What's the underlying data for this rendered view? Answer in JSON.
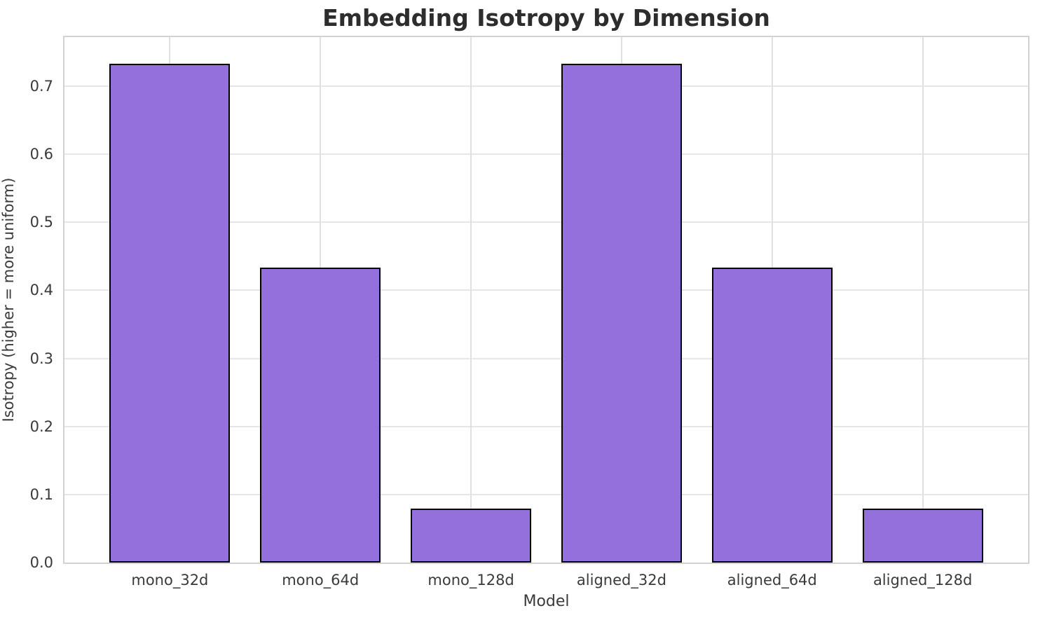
{
  "chart_data": {
    "type": "bar",
    "title": "Embedding Isotropy by Dimension",
    "xlabel": "Model",
    "ylabel": "Isotropy (higher = more uniform)",
    "categories": [
      "mono_32d",
      "mono_64d",
      "mono_128d",
      "aligned_32d",
      "aligned_64d",
      "aligned_128d"
    ],
    "values": [
      0.733,
      0.433,
      0.079,
      0.733,
      0.433,
      0.079
    ],
    "ylim": [
      0,
      0.772
    ],
    "yticks": [
      0.0,
      0.1,
      0.2,
      0.3,
      0.4,
      0.5,
      0.6,
      0.7
    ],
    "ytick_labels": [
      "0.0",
      "0.1",
      "0.2",
      "0.3",
      "0.4",
      "0.5",
      "0.6",
      "0.7"
    ],
    "xlim": [
      -0.7,
      5.7
    ],
    "bar_width": 0.8,
    "grid": true,
    "legend": "none",
    "colors": {
      "bar_fill": "#9370DB",
      "bar_edge": "#000000",
      "gridline": "#e7e7e7",
      "spine": "#d2d2d2",
      "tick_text": "#3a3a3a",
      "title_text": "#2d2d2d",
      "background": "#ffffff"
    }
  }
}
